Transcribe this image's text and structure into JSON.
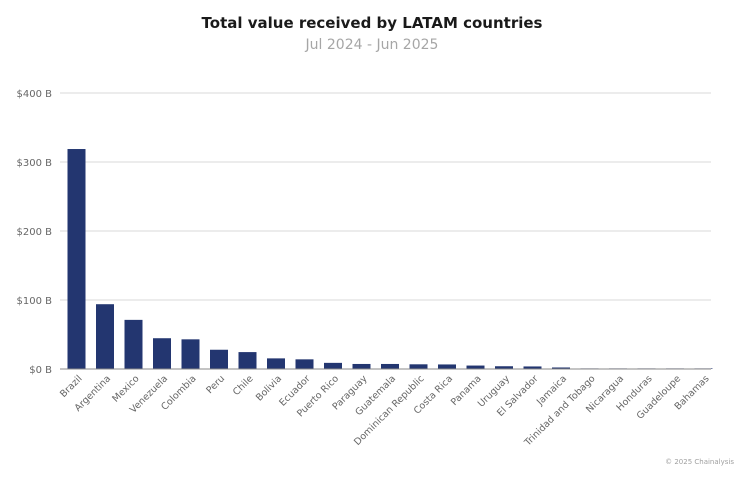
{
  "chart_data": {
    "type": "bar",
    "title": "Total value received by LATAM countries",
    "subtitle": "Jul 2024 - Jun 2025",
    "categories": [
      "Brazil",
      "Argentina",
      "Mexico",
      "Venezuela",
      "Colombia",
      "Peru",
      "Chile",
      "Bolivia",
      "Ecuador",
      "Puerto Rico",
      "Paraguay",
      "Guatemala",
      "Dominican Republic",
      "Costa Rica",
      "Panama",
      "Uruguay",
      "El Salvador",
      "Jamaica",
      "Trinidad and Tobago",
      "Nicaragua",
      "Honduras",
      "Guadeloupe",
      "Bahamas"
    ],
    "values": [
      318.8,
      93.9,
      71.2,
      44.6,
      43.0,
      27.9,
      24.5,
      15.4,
      14.0,
      8.9,
      7.3,
      7.3,
      6.8,
      6.6,
      5.0,
      4.0,
      3.7,
      2.2,
      0.6,
      0.5,
      0.5,
      0.3,
      0.2
    ],
    "ylim": [
      0,
      400
    ],
    "yticks": [
      0,
      100,
      200,
      300,
      400
    ],
    "ytick_labels": [
      "$0 B",
      "$100 B",
      "$200 B",
      "$300 B",
      "$400 B"
    ],
    "xlabel": "",
    "ylabel": "",
    "grid": true,
    "colors": {
      "bar": "#233670",
      "grid": "#d9d9d9",
      "axis": "#888888",
      "label": "#666666"
    }
  },
  "credit": "© 2025 Chainalysis"
}
